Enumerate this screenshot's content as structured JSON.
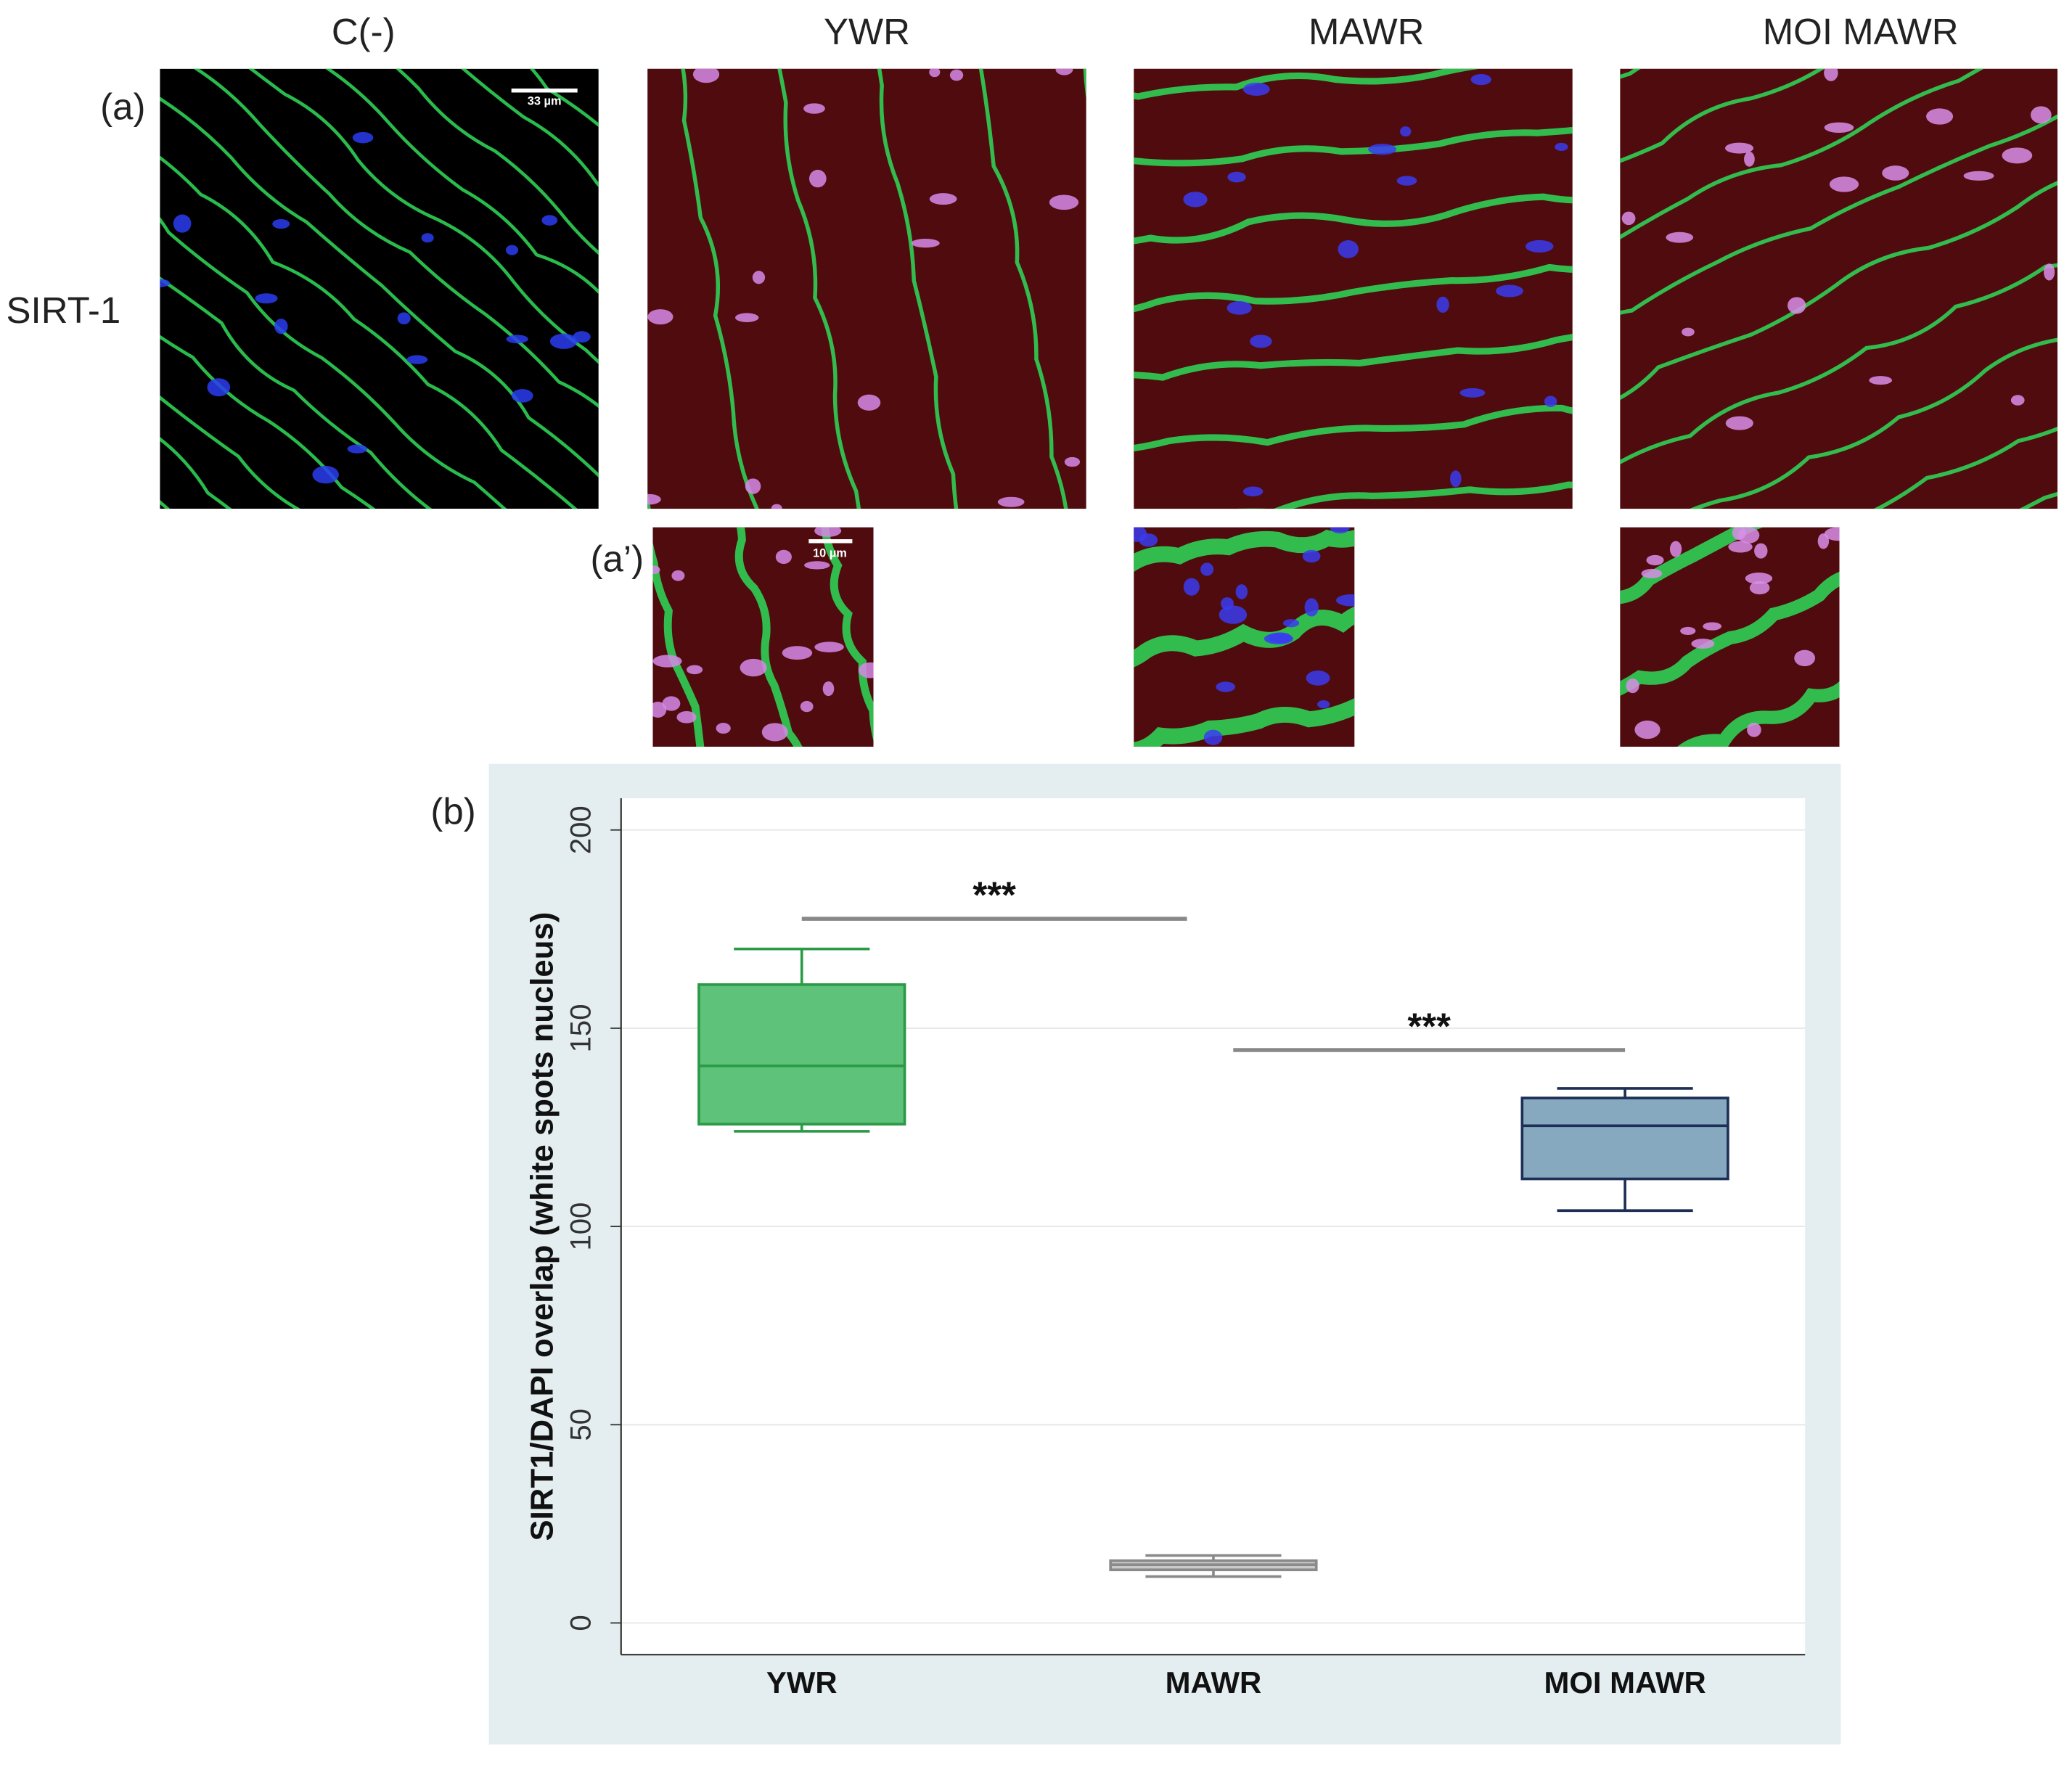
{
  "panels": {
    "columns": [
      "C(-)",
      "YWR",
      "MAWR",
      "MOI MAWR"
    ],
    "row_label": "SIRT-1",
    "label_a": "(a)",
    "label_a_prime": "(a’)",
    "label_b": "(b)",
    "scale_bar_main": "33 µm",
    "scale_bar_inset": "10 µm"
  },
  "chart_data": {
    "type": "box",
    "y_label": "SIRT1/DAPI overlap (white spots nucleus)",
    "categories": [
      "YWR",
      "MAWR",
      "MOI MAWR"
    ],
    "min": [
      124,
      11.7,
      104
    ],
    "q1": [
      125.8,
      13.4,
      112
    ],
    "median": [
      140.5,
      14.7,
      125.4
    ],
    "q3": [
      161,
      15.7,
      132.4
    ],
    "max": [
      170,
      17,
      134.8
    ],
    "colors": [
      "#5ec27a",
      "#c9c9c9",
      "#86a9bf"
    ],
    "edge_colors": [
      "#2a9a46",
      "#8a8a8a",
      "#1e2f55"
    ],
    "ylim": [
      -8,
      208
    ],
    "yticks": [
      0,
      50,
      100,
      150,
      200
    ],
    "grid": true,
    "annotations": [
      {
        "text": "***",
        "y": 177.6,
        "from": 0,
        "to": 1
      },
      {
        "text": "***",
        "y": 144.5,
        "from": 1,
        "to": 2
      }
    ]
  }
}
